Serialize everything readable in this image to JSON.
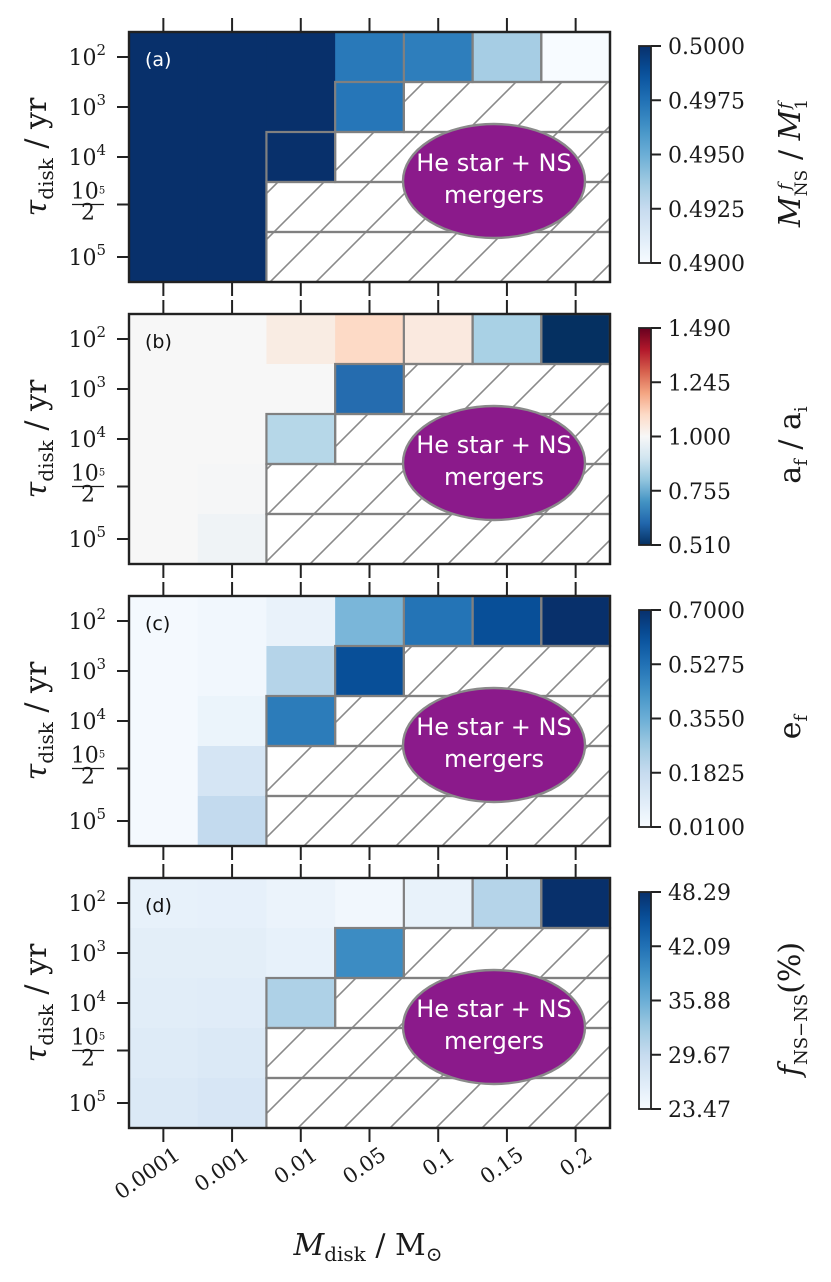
{
  "chart_data": {
    "type": "heatmap",
    "xlabel": "M_disk / M_⊙",
    "x_categories": [
      "0.0001",
      "0.001",
      "0.01",
      "0.05",
      "0.1",
      "0.15",
      "0.2"
    ],
    "ylabel": "τ_disk / yr",
    "y_categories": [
      "10^2",
      "10^3",
      "10^4",
      "10^5/2",
      "10^5"
    ],
    "merger_region_label": [
      "He star + NS",
      "mergers"
    ],
    "merger_region_color": "#8b1a8b",
    "panels": [
      {
        "letter": "(a)",
        "letter_color": "#ffffff",
        "colorbar_label": "M_NS^f / M_1^f",
        "colormap": "Blues",
        "vmin": 0.49,
        "vmax": 0.5,
        "colorbar_ticks": [
          "0.5000",
          "0.4975",
          "0.4950",
          "0.4925",
          "0.4900"
        ],
        "grid": [
          [
            0.5,
            0.5,
            0.5,
            0.4972,
            0.497,
            0.4935,
            0.49
          ],
          [
            0.5,
            0.5,
            0.5,
            0.4973,
            null,
            null,
            null
          ],
          [
            0.5,
            0.5,
            0.5,
            null,
            null,
            null,
            null
          ],
          [
            0.5,
            0.5,
            null,
            null,
            null,
            null,
            null
          ],
          [
            0.5,
            0.5,
            null,
            null,
            null,
            null,
            null
          ]
        ]
      },
      {
        "letter": "(b)",
        "letter_color": "#111111",
        "colorbar_label": "a_f / a_i",
        "colormap": "RdBu_r",
        "vmin": 0.51,
        "vmax": 1.49,
        "colorbar_ticks": [
          "1.490",
          "1.245",
          "1.000",
          "0.755",
          "0.510"
        ],
        "grid": [
          [
            1.0,
            1.0,
            1.04,
            1.1,
            1.05,
            0.84,
            0.51
          ],
          [
            1.0,
            1.0,
            1.0,
            0.62,
            null,
            null,
            null
          ],
          [
            1.0,
            1.0,
            0.86,
            null,
            null,
            null,
            null
          ],
          [
            1.0,
            0.995,
            null,
            null,
            null,
            null,
            null
          ],
          [
            1.0,
            0.98,
            null,
            null,
            null,
            null,
            null
          ]
        ]
      },
      {
        "letter": "(c)",
        "letter_color": "#111111",
        "colorbar_label": "e_f",
        "colormap": "Blues",
        "vmin": 0.01,
        "vmax": 0.7,
        "colorbar_ticks": [
          "0.7000",
          "0.5275",
          "0.3550",
          "0.1825",
          "0.0100"
        ],
        "grid": [
          [
            0.02,
            0.03,
            0.06,
            0.33,
            0.52,
            0.62,
            0.7
          ],
          [
            0.02,
            0.03,
            0.22,
            0.62,
            null,
            null,
            null
          ],
          [
            0.02,
            0.05,
            0.5,
            null,
            null,
            null,
            null
          ],
          [
            0.02,
            0.13,
            null,
            null,
            null,
            null,
            null
          ],
          [
            0.02,
            0.19,
            null,
            null,
            null,
            null,
            null
          ]
        ]
      },
      {
        "letter": "(d)",
        "letter_color": "#111111",
        "colorbar_label": "f_NS−NS(%)",
        "colormap": "Blues",
        "vmin": 23.47,
        "vmax": 48.29,
        "colorbar_ticks": [
          "48.29",
          "42.09",
          "35.88",
          "29.67",
          "23.47"
        ],
        "grid": [
          [
            25.5,
            25.6,
            25.0,
            24.2,
            25.3,
            31.0,
            48.29
          ],
          [
            26.0,
            26.0,
            25.5,
            39.5,
            null,
            null,
            null
          ],
          [
            26.2,
            26.3,
            31.5,
            null,
            null,
            null,
            null
          ],
          [
            26.6,
            27.0,
            null,
            null,
            null,
            null,
            null
          ],
          [
            27.0,
            27.5,
            null,
            null,
            null,
            null,
            null
          ]
        ]
      }
    ]
  }
}
